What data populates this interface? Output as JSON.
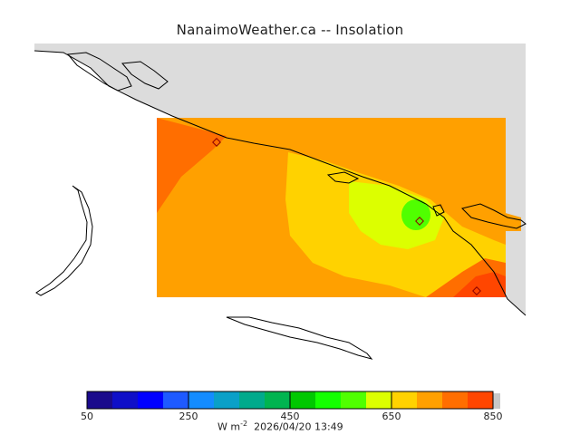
{
  "title": "NanaimoWeather.ca  --  Insolation",
  "colorbar": {
    "colors": [
      "#1a0a8c",
      "#0f0fc8",
      "#0000ff",
      "#1e5aff",
      "#148cff",
      "#0aa0c8",
      "#00aa8c",
      "#00b450",
      "#00c800",
      "#14ff00",
      "#50ff00",
      "#dcff00",
      "#ffd200",
      "#ffa000",
      "#ff6e00",
      "#ff4600",
      "#ff0000"
    ],
    "labels": [
      "50",
      "250",
      "450",
      "650",
      "850"
    ]
  },
  "caption": {
    "unit_prefix": "W m",
    "unit_exp": "-2",
    "timestamp": "2026/04/20 13:49"
  },
  "land_color": "#dcdcdc",
  "field_colors": {
    "c650_700": "#ffa000",
    "c700_750": "#ff6e00",
    "c750_800": "#ff4600",
    "c600_650": "#ffd200",
    "c550_600": "#dcff00",
    "c500_550": "#50ff00"
  }
}
